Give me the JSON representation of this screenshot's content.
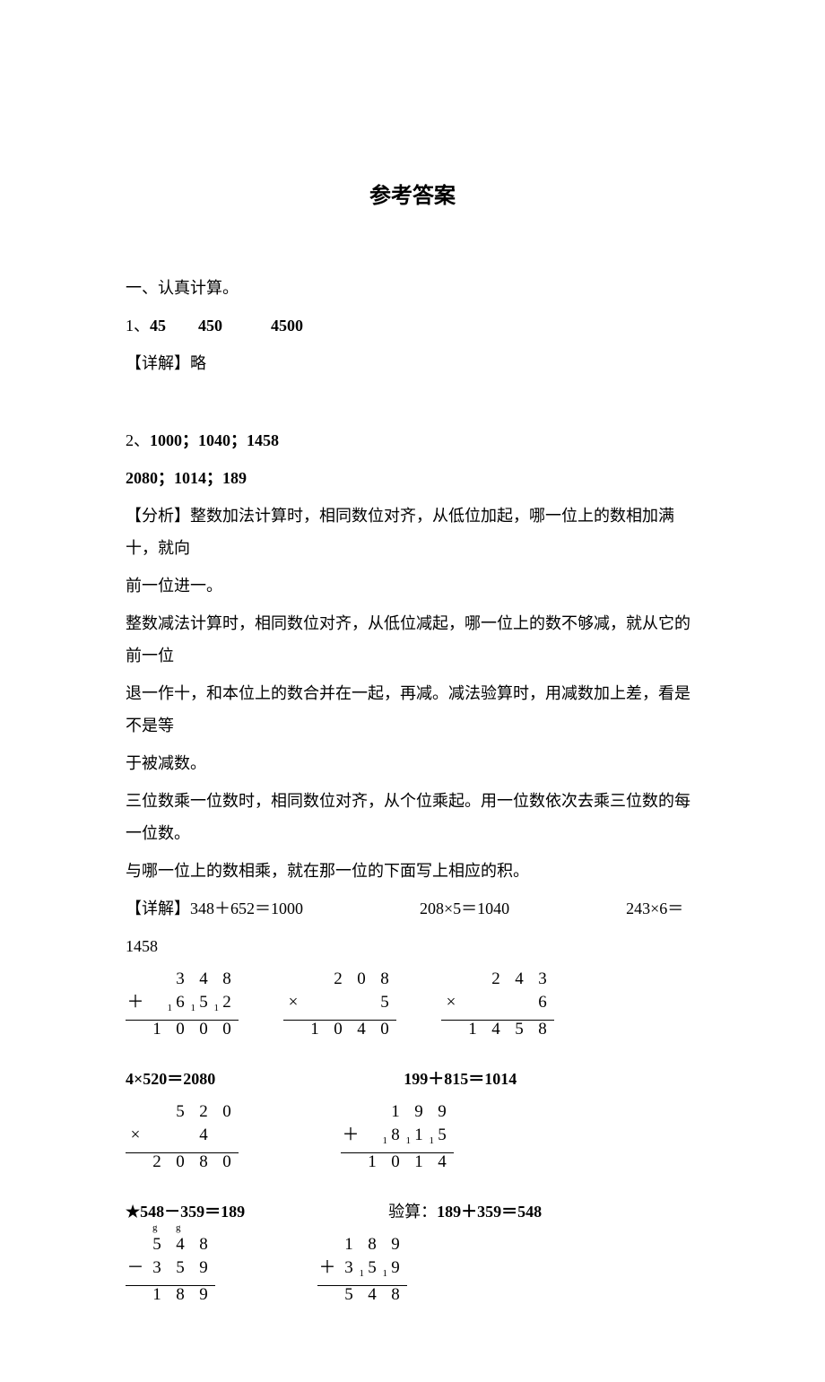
{
  "title": "参考答案",
  "section1_heading": "一、认真计算。",
  "q1": {
    "label": "1、",
    "answers": "45　　450　　　4500",
    "detail_label": "【详解】",
    "detail_text": "略"
  },
  "q2": {
    "label": "2、",
    "answers_l1": "1000；1040；1458",
    "answers_l2": "2080；1014；189",
    "analysis_label": "【分析】",
    "analysis_p1a": "整数加法计算时，相同数位对齐，从低位加起，哪一位上的数相加满十，就向",
    "analysis_p1b": "前一位进一。",
    "analysis_p2a": "整数减法计算时，相同数位对齐，从低位减起，哪一位上的数不够减，就从它的前一位",
    "analysis_p2b": "退一作十，和本位上的数合并在一起，再减。减法验算时，用减数加上差，看是不是等",
    "analysis_p2c": "于被减数。",
    "analysis_p3a": "三位数乘一位数时，相同数位对齐，从个位乘起。用一位数依次去乘三位数的每一位数。",
    "analysis_p3b": "与哪一位上的数相乘，就在那一位的下面写上相应的积。",
    "detail_label": "【详解】",
    "detail_eq1": "348＋652＝1000",
    "detail_eq2": "208×5＝1040",
    "detail_eq3": "243×6＝",
    "detail_eq3_cont": "1458",
    "detail_eq4": "4×520＝2080",
    "detail_eq5": "199＋815＝1014",
    "detail_eq6": "★548－359＝189",
    "detail_eq7_label": "验算：",
    "detail_eq7": "189＋359＝548",
    "calc_add1": {
      "r1": [
        "",
        "3",
        "4",
        "8"
      ],
      "r2_op": "＋",
      "r2": [
        "6",
        "5",
        "2"
      ],
      "r2_carry_idx": [
        0,
        1,
        2
      ],
      "r2_pre_carry": "1",
      "r3": [
        "1",
        "0",
        "0",
        "0"
      ]
    },
    "calc_mul1": {
      "r1": [
        "",
        "2",
        "0",
        "8"
      ],
      "r2_op": "×",
      "r2": [
        "",
        "",
        "5"
      ],
      "r3": [
        "1",
        "0",
        "4",
        "0"
      ]
    },
    "calc_mul2": {
      "r1": [
        "",
        "2",
        "4",
        "3"
      ],
      "r2_op": "×",
      "r2": [
        "",
        "",
        "6"
      ],
      "r3": [
        "1",
        "4",
        "5",
        "8"
      ]
    },
    "calc_mul3": {
      "r1": [
        "",
        "5",
        "2",
        "0"
      ],
      "r2_op": "×",
      "r2": [
        "",
        "4",
        ""
      ],
      "r3": [
        "2",
        "0",
        "8",
        "0"
      ]
    },
    "calc_add2": {
      "r1": [
        "",
        "1",
        "9",
        "9"
      ],
      "r2_op": "＋",
      "r2": [
        "8",
        "1",
        "5"
      ],
      "r2_carry_idx": [
        0,
        1,
        2
      ],
      "r2_pre_carry": "1",
      "r3": [
        "1",
        "0",
        "1",
        "4"
      ]
    },
    "calc_sub": {
      "r1": [
        "5",
        "4",
        "8"
      ],
      "r1_borrow_idx": [
        0,
        1
      ],
      "r2_op": "－",
      "r2": [
        "3",
        "5",
        "9"
      ],
      "r3": [
        "1",
        "8",
        "9"
      ]
    },
    "calc_verify": {
      "r1": [
        "1",
        "8",
        "9"
      ],
      "r2_op": "＋",
      "r2": [
        "3",
        "5",
        "9"
      ],
      "r2_carry_idx": [
        0,
        1
      ],
      "r3": [
        "5",
        "4",
        "8"
      ]
    }
  },
  "colors": {
    "text": "#000000",
    "bg": "#ffffff"
  },
  "fonts": {
    "body": "SimSun",
    "title": "SimHei",
    "title_size_pt": 18,
    "body_size_pt": 13
  }
}
